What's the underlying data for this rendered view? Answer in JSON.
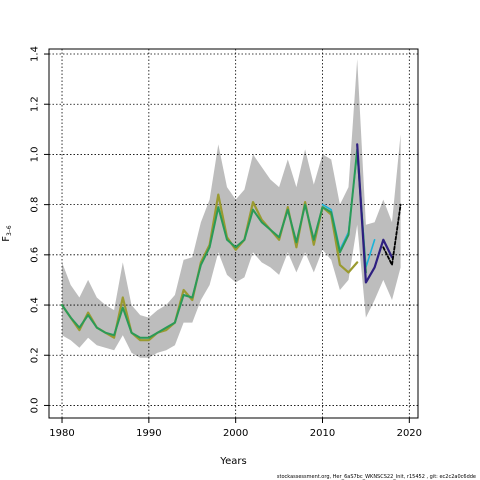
{
  "chart_data": {
    "type": "line",
    "xlabel": "Years",
    "ylabel": "F",
    "ylabel_sub": "3–6",
    "xlim": [
      1978.5,
      2021
    ],
    "ylim": [
      -0.05,
      1.42
    ],
    "x_ticks": [
      1980,
      1990,
      2000,
      2010,
      2020
    ],
    "y_ticks": [
      0.0,
      0.2,
      0.4,
      0.6,
      0.8,
      1.0,
      1.2,
      1.4
    ],
    "y_tick_labels": [
      "0.0",
      "0.2",
      "0.4",
      "0.6",
      "0.8",
      "1.0",
      "1.2",
      "1.4"
    ],
    "grid": true,
    "footer": "stockassessment.org, Her_6aS7bc_WKNSCS22_Init, r15452 , git: ec2c2a0c6dde",
    "band": {
      "x": [
        1980,
        1981,
        1982,
        1983,
        1984,
        1985,
        1986,
        1987,
        1988,
        1989,
        1990,
        1991,
        1992,
        1993,
        1994,
        1995,
        1996,
        1997,
        1998,
        1999,
        2000,
        2001,
        2002,
        2003,
        2004,
        2005,
        2006,
        2007,
        2008,
        2009,
        2010,
        2011,
        2012,
        2013,
        2014,
        2015,
        2016,
        2017,
        2018,
        2019
      ],
      "lower": [
        0.28,
        0.26,
        0.23,
        0.27,
        0.24,
        0.23,
        0.22,
        0.28,
        0.21,
        0.19,
        0.19,
        0.21,
        0.22,
        0.24,
        0.33,
        0.33,
        0.42,
        0.48,
        0.61,
        0.52,
        0.49,
        0.51,
        0.61,
        0.57,
        0.55,
        0.52,
        0.61,
        0.53,
        0.61,
        0.53,
        0.62,
        0.58,
        0.46,
        0.5,
        0.72,
        0.35,
        0.42,
        0.5,
        0.42,
        0.55
      ],
      "upper": [
        0.57,
        0.48,
        0.43,
        0.5,
        0.43,
        0.4,
        0.38,
        0.57,
        0.4,
        0.36,
        0.35,
        0.38,
        0.4,
        0.44,
        0.58,
        0.59,
        0.73,
        0.82,
        1.04,
        0.87,
        0.82,
        0.86,
        1.0,
        0.95,
        0.9,
        0.87,
        0.98,
        0.87,
        1.02,
        0.88,
        1.0,
        0.98,
        0.8,
        0.87,
        1.38,
        0.72,
        0.73,
        0.82,
        0.73,
        1.08
      ]
    },
    "series": [
      {
        "color": "#9a9a30",
        "width": 2.2,
        "x": [
          1980,
          1981,
          1982,
          1983,
          1984,
          1985,
          1986,
          1987,
          1988,
          1989,
          1990,
          1991,
          1992,
          1993,
          1994,
          1995,
          1996,
          1997,
          1998,
          1999,
          2000,
          2001,
          2002,
          2003,
          2004,
          2005,
          2006,
          2007,
          2008,
          2009,
          2010,
          2011,
          2012,
          2013,
          2014
        ],
        "y": [
          0.4,
          0.35,
          0.3,
          0.37,
          0.31,
          0.29,
          0.27,
          0.43,
          0.29,
          0.26,
          0.26,
          0.29,
          0.3,
          0.33,
          0.46,
          0.42,
          0.57,
          0.64,
          0.84,
          0.67,
          0.62,
          0.66,
          0.81,
          0.74,
          0.7,
          0.66,
          0.79,
          0.63,
          0.81,
          0.64,
          0.79,
          0.76,
          0.56,
          0.53,
          0.57
        ]
      },
      {
        "color": "#1ab3d8",
        "width": 1.6,
        "x": [
          2010,
          2011,
          2012,
          2013,
          2014,
          2015,
          2016
        ],
        "y": [
          0.8,
          0.78,
          0.62,
          0.69,
          1.01,
          0.55,
          0.66
        ]
      },
      {
        "color": "#2a9a58",
        "width": 2.0,
        "x": [
          1980,
          1981,
          1982,
          1983,
          1984,
          1985,
          1986,
          1987,
          1988,
          1989,
          1990,
          1991,
          1992,
          1993,
          1994,
          1995,
          1996,
          1997,
          1998,
          1999,
          2000,
          2001,
          2002,
          2003,
          2004,
          2005,
          2006,
          2007,
          2008,
          2009,
          2010,
          2011,
          2012,
          2013,
          2014,
          2015
        ],
        "y": [
          0.4,
          0.35,
          0.31,
          0.36,
          0.31,
          0.29,
          0.28,
          0.39,
          0.29,
          0.27,
          0.27,
          0.29,
          0.31,
          0.33,
          0.44,
          0.43,
          0.56,
          0.63,
          0.79,
          0.66,
          0.63,
          0.66,
          0.78,
          0.73,
          0.7,
          0.67,
          0.78,
          0.65,
          0.8,
          0.66,
          0.79,
          0.77,
          0.61,
          0.68,
          1.02,
          0.53
        ]
      },
      {
        "color": "#2e1f80",
        "width": 2.2,
        "x": [
          2014,
          2015,
          2016,
          2017,
          2018
        ],
        "y": [
          1.04,
          0.49,
          0.55,
          0.66,
          0.59
        ]
      },
      {
        "color": "#000000",
        "width": 1.8,
        "dash": "3 2",
        "x": [
          2017,
          2018,
          2019
        ],
        "y": [
          0.63,
          0.56,
          0.8
        ]
      }
    ]
  }
}
